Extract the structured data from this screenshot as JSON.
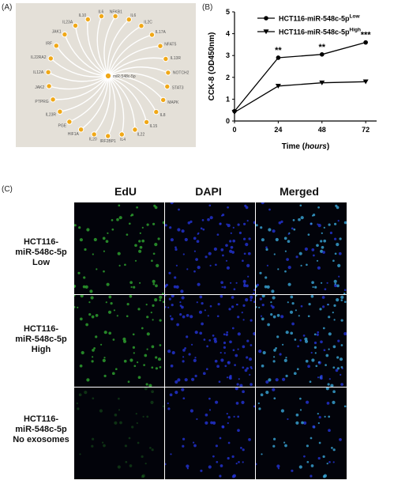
{
  "panels": {
    "a": "(A)",
    "b": "(B)",
    "c": "(C)"
  },
  "network": {
    "center": "miR-548c-5p",
    "genes": [
      "NFKB1",
      "IL6",
      "IL2C",
      "IL17A",
      "NFAT5",
      "IL13R",
      "NOTCH2",
      "STAT3",
      "MAPK",
      "IL8",
      "IL15",
      "IL22",
      "IL4",
      "IRF2BP1",
      "IL20",
      "HIF1A",
      "PGE",
      "IL23R",
      "PTPRG",
      "JAK2",
      "IL12A",
      "IL22RA2",
      "IRF",
      "JAK1",
      "IL23A",
      "IL10",
      "IL6"
    ]
  },
  "chart_data": {
    "type": "line",
    "x": [
      0,
      24,
      48,
      72
    ],
    "xlabel": "Time (hours)",
    "ylabel": "CCK-8 (OD450nm)",
    "xlim": [
      0,
      78
    ],
    "ylim": [
      0,
      5
    ],
    "xticks": [
      "0",
      "24",
      "48",
      "72"
    ],
    "yticks": [
      "0",
      "1",
      "2",
      "3",
      "4",
      "5"
    ],
    "series": [
      {
        "name": "HCT116-miR-548c-5pLow",
        "label_main": "HCT116-miR-548c-5p",
        "label_sup": "Low",
        "marker": "circle",
        "values": [
          0.45,
          2.9,
          3.05,
          3.6
        ]
      },
      {
        "name": "HCT116-miR-548c-5pHigh",
        "label_main": "HCT116-miR-548c-5p",
        "label_sup": "High",
        "marker": "triangle",
        "values": [
          0.4,
          1.6,
          1.75,
          1.8
        ]
      }
    ],
    "annotations": [
      {
        "x": 24,
        "text": "**"
      },
      {
        "x": 48,
        "text": "**"
      },
      {
        "x": 72,
        "text": "***"
      }
    ]
  },
  "micrographs": {
    "columns": [
      {
        "label": "EdU",
        "color": "#2fa82f"
      },
      {
        "label": "DAPI",
        "color": "#2434d8"
      },
      {
        "label": "Merged",
        "color": "#2f8fd8"
      }
    ],
    "rows": [
      {
        "line1": "HCT116-",
        "line2": "miR-548c-5p",
        "line3": "Low"
      },
      {
        "line1": "HCT116-",
        "line2": "miR-548c-5p",
        "line3": "High"
      },
      {
        "line1": "HCT116-",
        "line2": "miR-548c-5p",
        "line3": "No exosomes"
      }
    ]
  }
}
